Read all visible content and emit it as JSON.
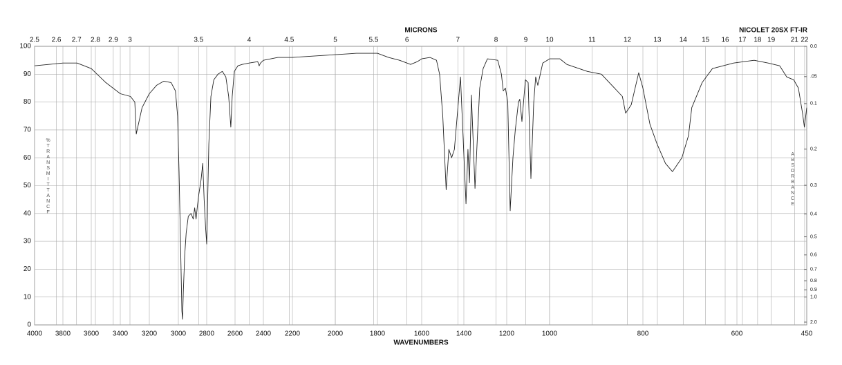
{
  "chart_data": {
    "type": "line",
    "title": "NICOLET 20SX FT-IR",
    "x2_label": "MICRONS",
    "x_label": "WAVENUMBERS",
    "y_label": "%TRANSMITTANCE",
    "y2_label": "ABSORBANCE",
    "color": "#222222",
    "grid": true,
    "x": [
      4000,
      3900,
      3800,
      3700,
      3650,
      3600,
      3500,
      3400,
      3330,
      3300,
      3290,
      3250,
      3200,
      3150,
      3100,
      3050,
      3020,
      3005,
      2995,
      2985,
      2975,
      2970,
      2965,
      2955,
      2945,
      2930,
      2910,
      2895,
      2885,
      2875,
      2865,
      2855,
      2840,
      2828,
      2818,
      2808,
      2800,
      2795,
      2785,
      2770,
      2750,
      2720,
      2690,
      2665,
      2645,
      2630,
      2620,
      2605,
      2580,
      2550,
      2500,
      2440,
      2430,
      2420,
      2400,
      2300,
      2200,
      2100,
      2000,
      1900,
      1800,
      1750,
      1700,
      1650,
      1620,
      1600,
      1560,
      1530,
      1515,
      1500,
      1484,
      1471,
      1458,
      1445,
      1416,
      1390,
      1381,
      1374,
      1365,
      1348,
      1326,
      1310,
      1290,
      1242,
      1225,
      1216,
      1206,
      1195,
      1184,
      1171,
      1160,
      1145,
      1139,
      1129,
      1113,
      1100,
      1087,
      1074,
      1065,
      1055,
      1032,
      1000,
      978,
      963,
      919,
      889,
      844,
      837,
      825,
      809,
      800,
      785,
      770,
      752,
      737,
      717,
      703,
      696,
      674,
      652,
      607,
      563,
      533,
      508,
      493,
      478,
      468,
      459,
      455,
      450
    ],
    "values": [
      93,
      93.5,
      94,
      94,
      93,
      92,
      87,
      83,
      82,
      80,
      68.5,
      78,
      83,
      86,
      87.5,
      87,
      84,
      75,
      55,
      30,
      5,
      2,
      12,
      25,
      33,
      39,
      40,
      38,
      42,
      38,
      43,
      47,
      52,
      58,
      45,
      35,
      29,
      40,
      65,
      82,
      88,
      90,
      91,
      89,
      82,
      71,
      82,
      91,
      93,
      93.5,
      94,
      94.5,
      93,
      94,
      95,
      96,
      96,
      96.5,
      97,
      97.5,
      97.5,
      96,
      95,
      93.5,
      94.5,
      95.5,
      96,
      95,
      90,
      75,
      48.5,
      63,
      60,
      63,
      89,
      43.5,
      63,
      51,
      82.5,
      49,
      85,
      92,
      95.5,
      95,
      90,
      84,
      85,
      80,
      41,
      60,
      70,
      80,
      81,
      73,
      88,
      87,
      52.5,
      80,
      89,
      86,
      94,
      95.5,
      95.5,
      93.5,
      91,
      90,
      82,
      76,
      79,
      90.5,
      85,
      72,
      65,
      58,
      55,
      60,
      68,
      78,
      87,
      92,
      94,
      95,
      94,
      93,
      89,
      88,
      85,
      76,
      71,
      78
    ],
    "ylim": [
      0,
      100
    ],
    "yticks": [
      0,
      10,
      20,
      30,
      40,
      50,
      60,
      70,
      80,
      90,
      100
    ],
    "y2ticks": [
      {
        "value": 0,
        "label": "0.0"
      },
      {
        "value": 0.05,
        "label": ".05"
      },
      0.1,
      0.2,
      0.3,
      0.4,
      0.5,
      0.6,
      0.7,
      0.8,
      0.9,
      {
        "value": 1,
        "label": "1.0"
      },
      {
        "value": 2,
        "label": "2.0"
      }
    ],
    "xticks": [
      4000,
      3800,
      3600,
      3400,
      3200,
      3000,
      2800,
      2600,
      2400,
      2200,
      2000,
      1800,
      1600,
      1400,
      1200,
      1000,
      800,
      600,
      450
    ],
    "x2ticks": [
      2.5,
      2.6,
      2.7,
      2.8,
      2.9,
      3,
      3.5,
      4,
      4.5,
      5,
      5.5,
      6,
      7,
      8,
      9,
      10,
      11,
      12,
      13,
      14,
      15,
      16,
      17,
      18,
      19,
      21,
      22
    ]
  }
}
